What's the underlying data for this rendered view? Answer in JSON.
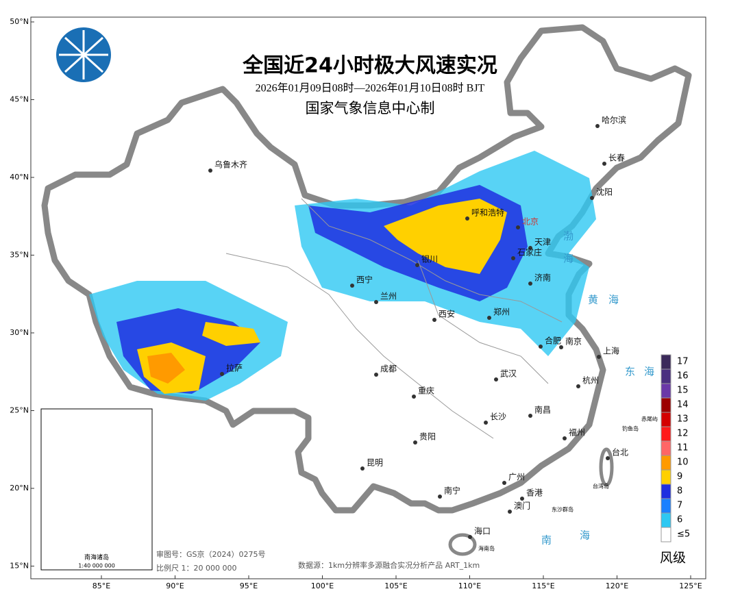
{
  "header": {
    "title": "全国近24小时极大风速实况",
    "subtitle": "2026年01月09日08时—2026年01月10日08时 BJT",
    "producer": "国家气象信息中心制"
  },
  "axes": {
    "lat_ticks": [
      {
        "value": 50,
        "label": "50°N"
      },
      {
        "value": 45,
        "label": "45°N"
      },
      {
        "value": 40,
        "label": "40°N"
      },
      {
        "value": 35,
        "label": "35°N"
      },
      {
        "value": 30,
        "label": "30°N"
      },
      {
        "value": 25,
        "label": "25°N"
      },
      {
        "value": 20,
        "label": "20°N"
      },
      {
        "value": 15,
        "label": "15°N"
      }
    ],
    "lon_ticks": [
      {
        "value": 85,
        "label": "85°E"
      },
      {
        "value": 90,
        "label": "90°E"
      },
      {
        "value": 95,
        "label": "95°E"
      },
      {
        "value": 100,
        "label": "100°E"
      },
      {
        "value": 105,
        "label": "105°E"
      },
      {
        "value": 110,
        "label": "110°E"
      },
      {
        "value": 115,
        "label": "115°E"
      },
      {
        "value": 120,
        "label": "120°E"
      },
      {
        "value": 125,
        "label": "125°E"
      }
    ]
  },
  "legend": {
    "title": "风级",
    "items": [
      {
        "label": "17",
        "color": "#3b2a5a"
      },
      {
        "label": "16",
        "color": "#4a2f80"
      },
      {
        "label": "15",
        "color": "#6a38a8"
      },
      {
        "label": "14",
        "color": "#9c0000"
      },
      {
        "label": "13",
        "color": "#d40000"
      },
      {
        "label": "12",
        "color": "#ff1a1a"
      },
      {
        "label": "11",
        "color": "#ff6666"
      },
      {
        "label": "10",
        "color": "#ff9a00"
      },
      {
        "label": "9",
        "color": "#ffd000"
      },
      {
        "label": "8",
        "color": "#1f2fe0"
      },
      {
        "label": "7",
        "color": "#1a80ff"
      },
      {
        "label": "6",
        "color": "#2ec8f2"
      },
      {
        "label": "≤5",
        "color": "#ffffff"
      }
    ]
  },
  "cities": [
    "乌鲁木齐",
    "哈尔滨",
    "长春",
    "沈阳",
    "呼和浩特",
    "北京",
    "天津",
    "石家庄",
    "银川",
    "济南",
    "西宁",
    "兰州",
    "西安",
    "郑州",
    "合肥",
    "南京",
    "上海",
    "拉萨",
    "成都",
    "武汉",
    "杭州",
    "重庆",
    "南昌",
    "长沙",
    "福州",
    "贵阳",
    "台北",
    "昆明",
    "广州",
    "香港",
    "南宁",
    "澳门",
    "海口"
  ],
  "seas": [
    "渤",
    "海",
    "黄",
    "海",
    "东",
    "海",
    "南",
    "海"
  ],
  "islands": [
    "钓鱼岛",
    "赤尾屿",
    "台湾岛",
    "东沙群岛",
    "海南岛"
  ],
  "inset": {
    "title": "南海诸岛",
    "scale": "1:40 000 000"
  },
  "footer": {
    "approval": "审图号：GS京（2024）0275号",
    "scale": "比例尺 1：20 000 000",
    "source": "数据源：1km分辨率多源融合实况分析产品 ART_1km"
  }
}
